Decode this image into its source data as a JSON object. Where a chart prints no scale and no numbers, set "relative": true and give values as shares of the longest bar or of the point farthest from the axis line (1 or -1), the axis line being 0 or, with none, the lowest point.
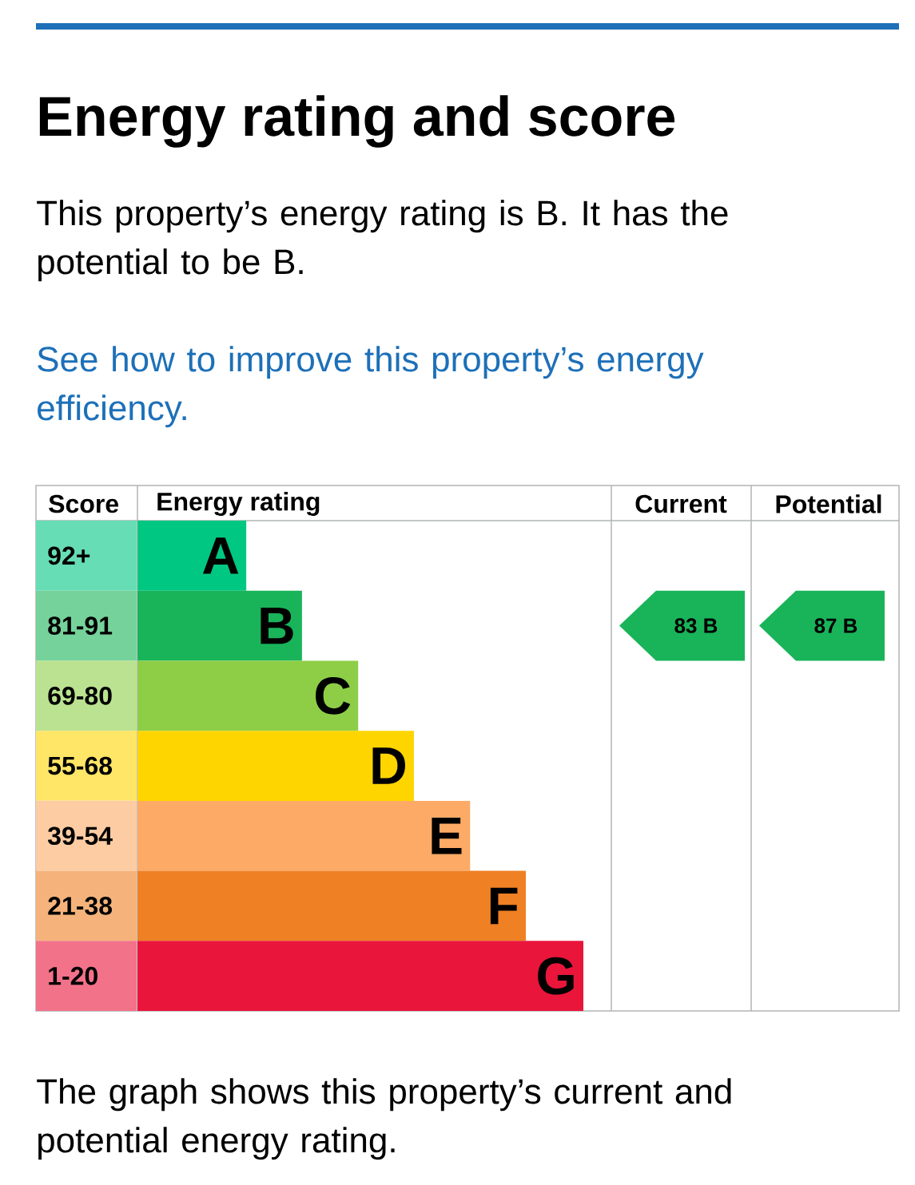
{
  "chart_data": {
    "type": "bar",
    "orientation": "horizontal",
    "relative": true,
    "title": "Energy rating and score",
    "subtitle": "This property’s energy rating is B. It has the potential to be B.",
    "xlabel": "Energy rating",
    "ylabel": "Score",
    "categories": [
      "92+",
      "81-91",
      "69-80",
      "55-68",
      "39-54",
      "21-38",
      "1-20"
    ],
    "values": [
      0.244,
      0.369,
      0.495,
      0.62,
      0.746,
      0.871,
      1
    ],
    "colors": [
      "#00c781",
      "#19b459",
      "#8dce46",
      "#ffd500",
      "#fcaa65",
      "#ef8023",
      "#e9153b"
    ],
    "annotations": [
      "See how to improve this property’s energy efficiency.",
      "The graph shows this property’s current and potential energy rating.",
      "Current",
      "Potential",
      "83 B",
      "87 B",
      {
        "text": "A",
        "x": 0.244,
        "y": "92+"
      },
      {
        "text": "B",
        "x": 0.369,
        "y": "81-91"
      },
      {
        "text": "C",
        "x": 0.495,
        "y": "69-80"
      },
      {
        "text": "D",
        "x": 0.62,
        "y": "55-68"
      },
      {
        "text": "E",
        "x": 0.746,
        "y": "39-54"
      },
      {
        "text": "F",
        "x": 0.871,
        "y": "21-38"
      },
      {
        "text": "G",
        "x": 1,
        "y": "1-20"
      }
    ]
  }
}
